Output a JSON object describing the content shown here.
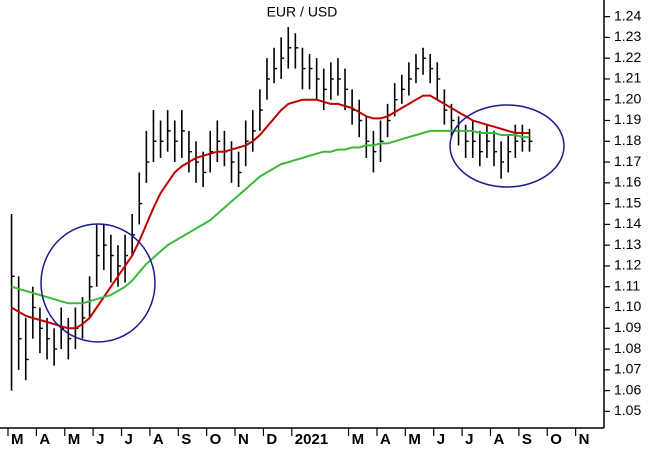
{
  "chart_data": {
    "type": "hlc",
    "title": "EUR / USD",
    "categories": [
      "M",
      null,
      null,
      null,
      "A",
      null,
      null,
      null,
      "M",
      null,
      null,
      null,
      "J",
      null,
      null,
      null,
      "J",
      null,
      null,
      null,
      "A",
      null,
      null,
      null,
      "S",
      null,
      null,
      null,
      "O",
      null,
      null,
      null,
      "N",
      null,
      null,
      null,
      "D",
      null,
      null,
      null,
      "2021",
      null,
      null,
      null,
      null,
      null,
      null,
      null,
      "M",
      null,
      null,
      null,
      "A",
      null,
      null,
      null,
      "M",
      null,
      null,
      null,
      "J",
      null,
      null,
      null,
      "J",
      null,
      null,
      null,
      "A",
      null,
      null,
      null,
      "S",
      null,
      null,
      null,
      "O",
      null,
      null,
      null,
      "N",
      null,
      null,
      null
    ],
    "high": [
      1.145,
      1.115,
      1.095,
      1.11,
      1.1,
      1.095,
      1.09,
      1.1,
      1.095,
      1.1,
      1.105,
      1.115,
      1.14,
      1.14,
      1.135,
      1.13,
      1.135,
      1.145,
      1.165,
      1.185,
      1.195,
      1.19,
      1.195,
      1.19,
      1.195,
      1.185,
      1.18,
      1.175,
      1.185,
      1.19,
      1.185,
      1.18,
      1.175,
      1.19,
      1.195,
      1.205,
      1.22,
      1.225,
      1.23,
      1.235,
      1.232,
      1.225,
      1.222,
      1.22,
      1.215,
      1.218,
      1.22,
      1.215,
      1.205,
      1.2,
      1.192,
      1.185,
      1.19,
      1.198,
      1.208,
      1.212,
      1.218,
      1.222,
      1.225,
      1.222,
      1.218,
      1.205,
      1.198,
      1.192,
      1.188,
      1.19,
      1.185,
      1.188,
      1.185,
      1.18,
      1.183,
      1.188,
      1.188,
      1.186,
      null,
      null,
      null,
      null,
      null,
      null,
      null,
      null,
      null,
      null
    ],
    "low": [
      1.06,
      1.07,
      1.065,
      1.085,
      1.078,
      1.075,
      1.072,
      1.08,
      1.075,
      1.08,
      1.085,
      1.095,
      1.11,
      1.118,
      1.112,
      1.11,
      1.112,
      1.125,
      1.14,
      1.16,
      1.17,
      1.172,
      1.175,
      1.17,
      1.172,
      1.165,
      1.16,
      1.158,
      1.165,
      1.17,
      1.168,
      1.16,
      1.158,
      1.168,
      1.175,
      1.185,
      1.2,
      1.208,
      1.21,
      1.215,
      1.215,
      1.205,
      1.205,
      1.2,
      1.195,
      1.2,
      1.202,
      1.195,
      1.188,
      1.182,
      1.172,
      1.165,
      1.17,
      1.182,
      1.192,
      1.198,
      1.202,
      1.208,
      1.212,
      1.208,
      1.2,
      1.188,
      1.182,
      1.178,
      1.172,
      1.172,
      1.168,
      1.172,
      1.168,
      1.162,
      1.165,
      1.172,
      1.175,
      1.175,
      null,
      null,
      null,
      null,
      null,
      null,
      null,
      null,
      null,
      null
    ],
    "close": [
      1.115,
      1.085,
      1.075,
      1.1,
      1.09,
      1.085,
      1.08,
      1.09,
      1.085,
      1.09,
      1.095,
      1.11,
      1.125,
      1.13,
      1.125,
      1.12,
      1.125,
      1.135,
      1.15,
      1.17,
      1.18,
      1.18,
      1.185,
      1.18,
      1.185,
      1.175,
      1.17,
      1.165,
      1.175,
      1.18,
      1.175,
      1.17,
      1.165,
      1.18,
      1.185,
      1.195,
      1.21,
      1.215,
      1.22,
      1.225,
      1.225,
      1.215,
      1.215,
      1.21,
      1.205,
      1.21,
      1.21,
      1.205,
      1.195,
      1.19,
      1.18,
      1.175,
      1.18,
      1.19,
      1.2,
      1.205,
      1.21,
      1.215,
      1.22,
      1.215,
      1.21,
      1.195,
      1.19,
      1.185,
      1.18,
      1.18,
      1.175,
      1.18,
      1.175,
      1.17,
      1.175,
      1.18,
      1.18,
      1.18,
      null,
      null,
      null,
      null,
      null,
      null,
      null,
      null,
      null,
      null
    ],
    "series": [
      {
        "color": "#c00000",
        "values": [
          1.1,
          1.098,
          1.096,
          1.095,
          1.094,
          1.093,
          1.092,
          1.091,
          1.09,
          1.09,
          1.092,
          1.095,
          1.1,
          1.105,
          1.11,
          1.115,
          1.12,
          1.125,
          1.132,
          1.14,
          1.148,
          1.155,
          1.16,
          1.165,
          1.168,
          1.17,
          1.172,
          1.173,
          1.174,
          1.175,
          1.175,
          1.176,
          1.177,
          1.178,
          1.18,
          1.183,
          1.187,
          1.191,
          1.195,
          1.198,
          1.199,
          1.2,
          1.2,
          1.2,
          1.199,
          1.198,
          1.198,
          1.197,
          1.196,
          1.194,
          1.192,
          1.191,
          1.191,
          1.192,
          1.194,
          1.196,
          1.198,
          1.2,
          1.202,
          1.202,
          1.2,
          1.198,
          1.196,
          1.194,
          1.192,
          1.19,
          1.189,
          1.188,
          1.187,
          1.186,
          1.185,
          1.184,
          1.184,
          1.184,
          null,
          null,
          null,
          null,
          null,
          null,
          null,
          null,
          null,
          null
        ]
      },
      {
        "color": "#3cb93c",
        "values": [
          1.11,
          1.109,
          1.108,
          1.107,
          1.106,
          1.105,
          1.104,
          1.103,
          1.102,
          1.102,
          1.102,
          1.103,
          1.104,
          1.105,
          1.106,
          1.108,
          1.11,
          1.113,
          1.117,
          1.121,
          1.124,
          1.127,
          1.13,
          1.132,
          1.134,
          1.136,
          1.138,
          1.14,
          1.142,
          1.145,
          1.148,
          1.151,
          1.154,
          1.157,
          1.16,
          1.163,
          1.165,
          1.167,
          1.169,
          1.17,
          1.171,
          1.172,
          1.173,
          1.174,
          1.175,
          1.175,
          1.176,
          1.176,
          1.177,
          1.177,
          1.178,
          1.178,
          1.179,
          1.179,
          1.18,
          1.181,
          1.182,
          1.183,
          1.184,
          1.185,
          1.185,
          1.185,
          1.185,
          1.185,
          1.185,
          1.185,
          1.184,
          1.184,
          1.184,
          1.183,
          1.183,
          1.183,
          1.182,
          1.182,
          null,
          null,
          null,
          null,
          null,
          null,
          null,
          null,
          null,
          null
        ]
      }
    ],
    "ylim": [
      1.042,
      1.248
    ],
    "yticks": [
      1.05,
      1.06,
      1.07,
      1.08,
      1.09,
      {
        "value": 1.1,
        "label": "1.10"
      },
      1.11,
      1.12,
      1.13,
      1.14,
      1.15,
      1.16,
      1.17,
      1.18,
      1.19,
      {
        "value": 1.2,
        "label": "1.20"
      },
      1.21,
      1.22,
      1.23,
      1.24
    ]
  }
}
